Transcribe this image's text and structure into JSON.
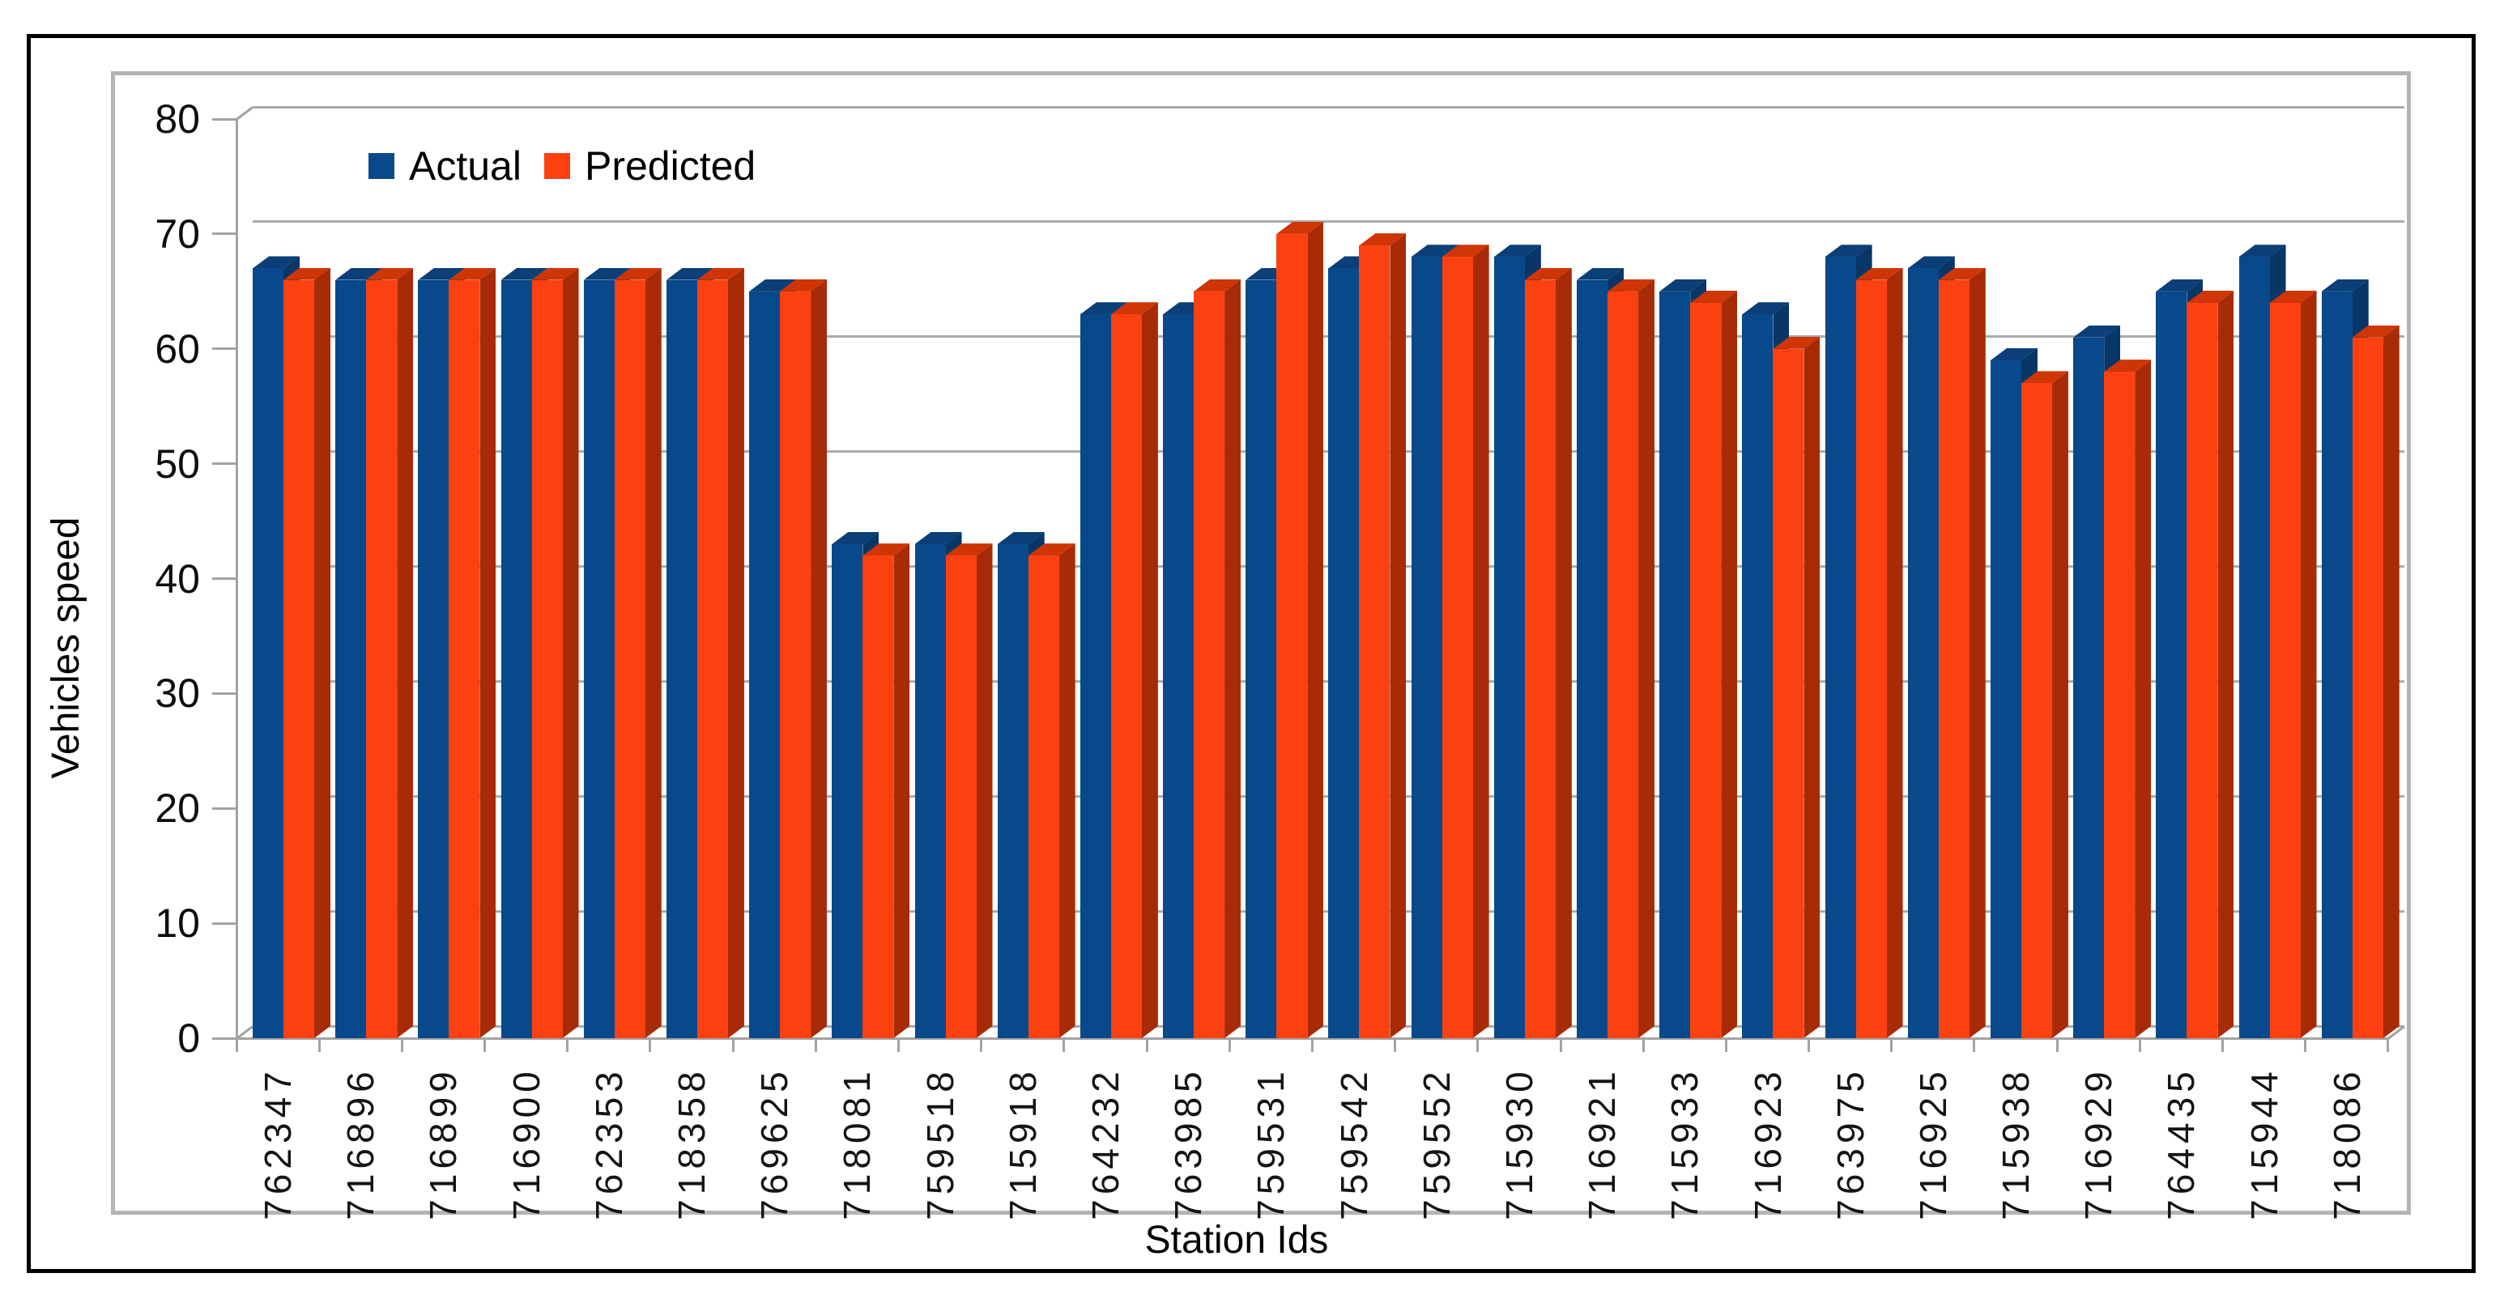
{
  "chart_data": {
    "type": "bar",
    "style": "3d-grouped-bars",
    "title": "",
    "xlabel": "Station Ids",
    "ylabel": "Vehicles speed",
    "ylim": [
      0,
      80
    ],
    "ytick_step": 10,
    "y_tick_labels": [
      "0",
      "10",
      "20",
      "30",
      "40",
      "50",
      "60",
      "70",
      "80"
    ],
    "grid": true,
    "legend_position": "inside-top-left",
    "categories": [
      "762347",
      "716896",
      "716899",
      "716900",
      "762353",
      "718358",
      "769625",
      "718081",
      "759518",
      "715918",
      "764232",
      "763985",
      "759531",
      "759542",
      "759552",
      "715930",
      "716921",
      "715933",
      "716923",
      "763975",
      "716925",
      "715938",
      "716929",
      "764435",
      "715944",
      "718086"
    ],
    "series": [
      {
        "name": "Actual",
        "color": "#08498c",
        "color_side": "#073667",
        "color_top": "#0a3f78",
        "values": [
          67,
          66,
          66,
          66,
          66,
          66,
          65,
          43,
          43,
          43,
          63,
          63,
          66,
          67,
          68,
          68,
          66,
          65,
          63,
          68,
          67,
          59,
          61,
          65,
          68,
          65
        ]
      },
      {
        "name": "Predicted",
        "color": "#fc4111",
        "color_side": "#a82b08",
        "color_top": "#cf3505",
        "values": [
          66,
          66,
          66,
          66,
          66,
          66,
          65,
          42,
          42,
          42,
          63,
          65,
          70,
          69,
          68,
          66,
          65,
          64,
          60,
          66,
          66,
          57,
          58,
          64,
          64,
          61
        ]
      }
    ],
    "colors": {
      "gridline": "#ababab",
      "axis_line": "#a3a3a3",
      "chart_frame_border": "#b4b4b4",
      "figure_border": "#000000",
      "background": "#ffffff"
    }
  }
}
